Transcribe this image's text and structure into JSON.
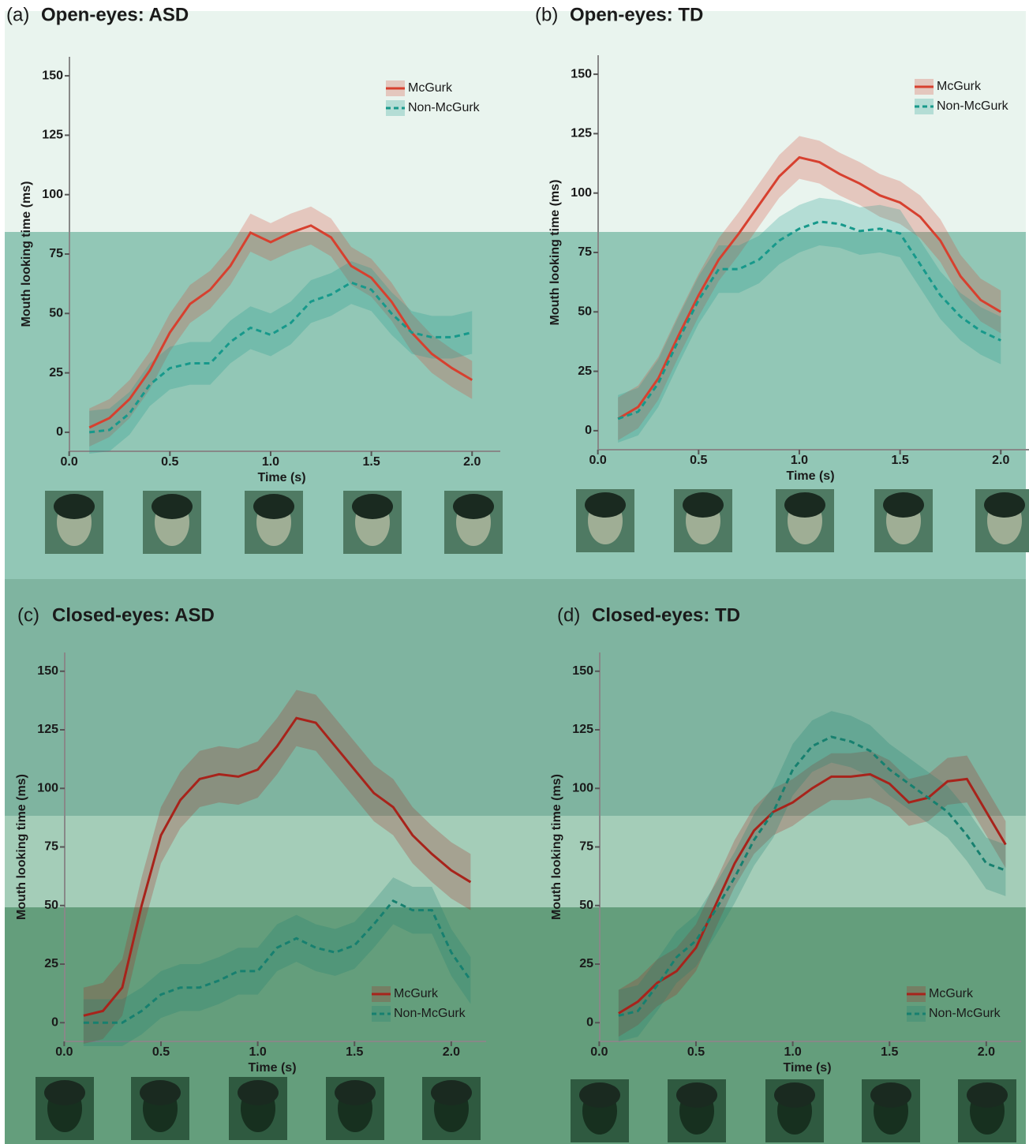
{
  "chart_data": [
    {
      "type": "line",
      "panel_label": "(a)",
      "title": "Open-eyes: ASD",
      "xlabel": "Time (s)",
      "ylabel": "Mouth looking time (ms)",
      "x": [
        0.1,
        0.2,
        0.3,
        0.4,
        0.5,
        0.6,
        0.7,
        0.8,
        0.9,
        1.0,
        1.1,
        1.2,
        1.3,
        1.4,
        1.5,
        1.6,
        1.7,
        1.8,
        1.9,
        2.0
      ],
      "series": [
        {
          "name": "McGurk",
          "color": "#d7402f",
          "line_style": "solid",
          "ci": 8,
          "values": [
            2,
            6,
            14,
            26,
            42,
            54,
            60,
            70,
            84,
            80,
            84,
            87,
            82,
            70,
            65,
            55,
            42,
            33,
            27,
            22
          ]
        },
        {
          "name": "Non-McGurk",
          "color": "#17998b",
          "line_style": "dashed",
          "ci": 9,
          "values": [
            0,
            1,
            8,
            20,
            27,
            29,
            29,
            38,
            44,
            41,
            46,
            55,
            58,
            63,
            60,
            50,
            42,
            40,
            40,
            42
          ]
        }
      ],
      "xlim": [
        -0.03,
        2.14
      ],
      "ylim": [
        -8,
        158
      ],
      "xticks": [
        {
          "value": 0,
          "label": "0.0"
        },
        0.5,
        {
          "value": 1,
          "label": "1.0"
        },
        1.5,
        {
          "value": 2,
          "label": "2.0"
        }
      ],
      "yticks": [
        0,
        25,
        50,
        75,
        100,
        125,
        150
      ],
      "legend": "top-right"
    },
    {
      "type": "line",
      "panel_label": "(b)",
      "title": "Open-eyes: TD",
      "xlabel": "Time (s)",
      "ylabel": "Mouth looking time (ms)",
      "x": [
        0.1,
        0.2,
        0.3,
        0.4,
        0.5,
        0.6,
        0.7,
        0.8,
        0.9,
        1.0,
        1.1,
        1.2,
        1.3,
        1.4,
        1.5,
        1.6,
        1.7,
        1.8,
        1.9,
        2.0
      ],
      "series": [
        {
          "name": "McGurk",
          "color": "#d7402f",
          "line_style": "solid",
          "ci": 9,
          "values": [
            5,
            10,
            22,
            40,
            57,
            72,
            83,
            95,
            107,
            115,
            113,
            108,
            104,
            99,
            96,
            90,
            80,
            65,
            55,
            50
          ]
        },
        {
          "name": "Non-McGurk",
          "color": "#17998b",
          "line_style": "dashed",
          "ci": 10,
          "values": [
            5,
            8,
            20,
            38,
            55,
            68,
            68,
            72,
            80,
            85,
            88,
            87,
            84,
            85,
            83,
            70,
            57,
            48,
            42,
            38
          ]
        }
      ],
      "xlim": [
        -0.03,
        2.14
      ],
      "ylim": [
        -8,
        158
      ],
      "xticks": [
        {
          "value": 0,
          "label": "0.0"
        },
        0.5,
        {
          "value": 1,
          "label": "1.0"
        },
        1.5,
        {
          "value": 2,
          "label": "2.0"
        }
      ],
      "yticks": [
        0,
        25,
        50,
        75,
        100,
        125,
        150
      ],
      "legend": "top-right"
    },
    {
      "type": "line",
      "panel_label": "(c)",
      "title": "Closed-eyes: ASD",
      "xlabel": "Time (s)",
      "ylabel": "Mouth looking time (ms)",
      "x": [
        0.1,
        0.2,
        0.3,
        0.4,
        0.5,
        0.6,
        0.7,
        0.8,
        0.9,
        1.0,
        1.1,
        1.2,
        1.3,
        1.4,
        1.5,
        1.6,
        1.7,
        1.8,
        1.9,
        2.0,
        2.1
      ],
      "series": [
        {
          "name": "McGurk",
          "color": "#a8231b",
          "line_style": "solid",
          "ci": 12,
          "values": [
            3,
            5,
            15,
            50,
            80,
            95,
            104,
            106,
            105,
            108,
            118,
            130,
            128,
            118,
            108,
            98,
            92,
            80,
            72,
            65,
            60
          ]
        },
        {
          "name": "Non-McGurk",
          "color": "#17806f",
          "line_style": "dashed",
          "ci": 10,
          "values": [
            0,
            0,
            0,
            5,
            12,
            15,
            15,
            18,
            22,
            22,
            32,
            36,
            32,
            30,
            33,
            42,
            52,
            48,
            48,
            30,
            18
          ]
        }
      ],
      "xlim": [
        -0.03,
        2.18
      ],
      "ylim": [
        -8,
        158
      ],
      "xticks": [
        {
          "value": 0,
          "label": "0.0"
        },
        0.5,
        {
          "value": 1,
          "label": "1.0"
        },
        1.5,
        {
          "value": 2,
          "label": "2.0"
        }
      ],
      "yticks": [
        0,
        25,
        50,
        75,
        100,
        125,
        150
      ],
      "legend": "bottom-right"
    },
    {
      "type": "line",
      "panel_label": "(d)",
      "title": "Closed-eyes: TD",
      "xlabel": "Time (s)",
      "ylabel": "Mouth looking time (ms)",
      "x": [
        0.1,
        0.2,
        0.3,
        0.4,
        0.5,
        0.6,
        0.7,
        0.8,
        0.9,
        1.0,
        1.1,
        1.2,
        1.3,
        1.4,
        1.5,
        1.6,
        1.7,
        1.8,
        1.9,
        2.0,
        2.1
      ],
      "series": [
        {
          "name": "McGurk",
          "color": "#a8231b",
          "line_style": "solid",
          "ci": 10,
          "values": [
            4,
            9,
            17,
            22,
            32,
            50,
            68,
            82,
            90,
            94,
            100,
            105,
            105,
            106,
            102,
            94,
            96,
            103,
            104,
            90,
            76
          ]
        },
        {
          "name": "Non-McGurk",
          "color": "#17806f",
          "line_style": "dashed",
          "ci": 11,
          "values": [
            3,
            5,
            16,
            28,
            35,
            48,
            62,
            78,
            90,
            108,
            118,
            122,
            120,
            116,
            108,
            102,
            96,
            90,
            80,
            68,
            65
          ]
        }
      ],
      "xlim": [
        -0.03,
        2.18
      ],
      "ylim": [
        -8,
        158
      ],
      "xticks": [
        {
          "value": 0,
          "label": "0.0"
        },
        0.5,
        {
          "value": 1,
          "label": "1.0"
        },
        1.5,
        {
          "value": 2,
          "label": "2.0"
        }
      ],
      "yticks": [
        0,
        25,
        50,
        75,
        100,
        125,
        150
      ],
      "legend": "bottom-right"
    }
  ]
}
